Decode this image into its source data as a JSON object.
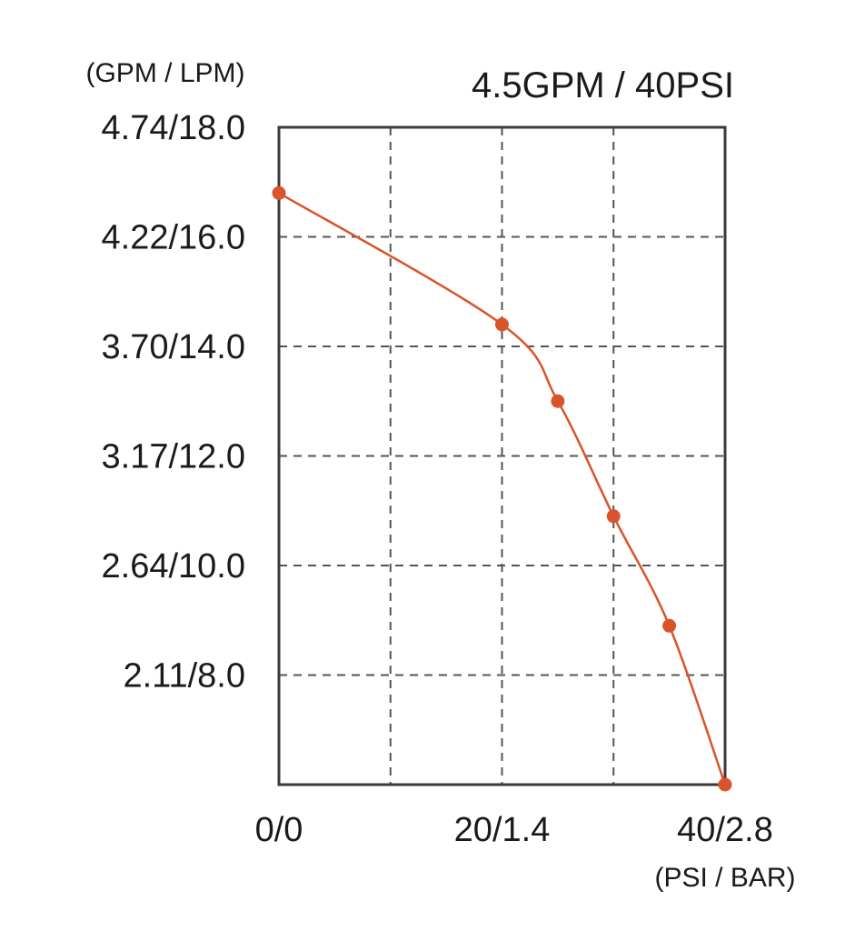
{
  "chart_data": {
    "type": "line",
    "title": "4.5GPM / 40PSI",
    "ylabel": "(GPM / LPM)",
    "xlabel": "(PSI / BAR)",
    "xlim": [
      0,
      40
    ],
    "ylim": [
      6.0,
      18.0
    ],
    "grid": true,
    "x_ticks": [
      {
        "value": 0,
        "label": "0/0"
      },
      {
        "value": 10,
        "label": ""
      },
      {
        "value": 20,
        "label": "20/1.4"
      },
      {
        "value": 30,
        "label": ""
      },
      {
        "value": 40,
        "label": "40/2.8"
      }
    ],
    "y_ticks": [
      {
        "value": 8.0,
        "label": "2.11/8.0"
      },
      {
        "value": 10.0,
        "label": "2.64/10.0"
      },
      {
        "value": 12.0,
        "label": "3.17/12.0"
      },
      {
        "value": 14.0,
        "label": "3.70/14.0"
      },
      {
        "value": 16.0,
        "label": "4.22/16.0"
      },
      {
        "value": 18.0,
        "label": "4.74/18.0"
      }
    ],
    "series": [
      {
        "color": "#d9542b",
        "x": [
          0,
          20,
          25,
          30,
          35,
          40
        ],
        "y": [
          16.8,
          14.4,
          13.0,
          10.9,
          8.9,
          6.0
        ]
      }
    ]
  }
}
